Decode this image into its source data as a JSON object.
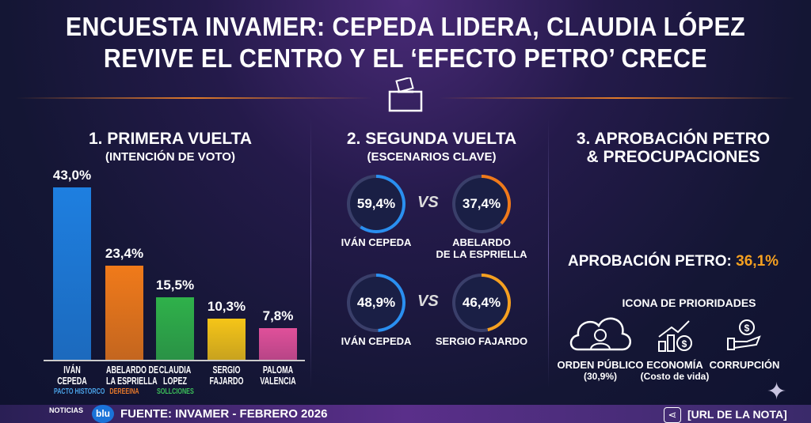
{
  "title": {
    "line1": "ENCUESTA INVAMER: CEPEDA LIDERA, CLAUDIA LÓPEZ",
    "line2": "REVIVE EL CENTRO Y EL ‘EFECTO PETRO’ CRECE"
  },
  "section1": {
    "title": "1. PRIMERA VUELTA",
    "subtitle": "(INTENCIÓN DE VOTO)"
  },
  "chart_data": {
    "type": "bar",
    "title": "1. PRIMERA VUELTA (INTENCIÓN DE VOTO)",
    "categories": [
      "IVÁN CEPEDA",
      "ABELARDO DE LA ESPRIELLA",
      "CLAUDIA LOPEZ",
      "SERGIO FAJARDO",
      "PALOMA VALENCIA"
    ],
    "values": [
      43.0,
      23.4,
      15.5,
      10.3,
      7.8
    ],
    "labels": [
      "43,0%",
      "23,4%",
      "15,5%",
      "10,3%",
      "7,8%"
    ],
    "name_lines": [
      [
        "IVÁN",
        "CEPEDA"
      ],
      [
        "ABELARDO DE",
        "LA ESPRIELLA"
      ],
      [
        "CLAUDIA",
        "LOPEZ"
      ],
      [
        "SERGIO",
        "FAJARDO"
      ],
      [
        "PALOMA",
        "VALENCIA"
      ]
    ],
    "parties": [
      "PACTO HISTORCO",
      "DEREEINA",
      "SOLLCIONES",
      "",
      ""
    ],
    "colors": [
      "#1e7fe0",
      "#f07a1a",
      "#2fb14a",
      "#f5c518",
      "#e0509a"
    ],
    "party_colors": [
      "#4aa3e8",
      "#e8782a",
      "#3cc05a",
      "",
      ""
    ],
    "ylim": [
      0,
      45
    ]
  },
  "section2": {
    "title": "2. SEGUNDA VUELTA",
    "subtitle": "(ESCENARIOS CLAVE)",
    "vs": "VS",
    "scenarios": [
      {
        "a": {
          "value": "59,4%",
          "pct": 59.4,
          "name": [
            "IVÁN CEPEDA",
            ""
          ],
          "color": "#2a8ff0"
        },
        "b": {
          "value": "37,4%",
          "pct": 37.4,
          "name": [
            "ABELARDO",
            "DE LA ESPRIELLA"
          ],
          "color": "#f07a1a"
        }
      },
      {
        "a": {
          "value": "48,9%",
          "pct": 48.9,
          "name": [
            "IVÁN CEPEDA",
            ""
          ],
          "color": "#2a8ff0"
        },
        "b": {
          "value": "46,4%",
          "pct": 46.4,
          "name": [
            "SERGIO FAJARDO",
            ""
          ],
          "color": "#f5a020"
        }
      }
    ]
  },
  "section3": {
    "title1": "3. APROBACIÓN PETRO",
    "title2": "& PREOCUPACIONES",
    "approval_label": "APROBACIÓN PETRO:",
    "approval_value": "36,1%",
    "priorities_title": "ICONA DE PRIORIDADES",
    "priorities": [
      {
        "l1": "ORDEN PÚBLICO",
        "l2": "(30,9%)"
      },
      {
        "l1": "ECONOMÍA",
        "l2": "(Costo de vida)"
      },
      {
        "l1": "CORRUPCIÓN",
        "l2": ""
      }
    ]
  },
  "footer": {
    "source": "FUENTE: INVAMER - FEBRERO 2026",
    "url": "[URL DE LA NOTA]",
    "logo1": "NOTICIAS",
    "logo2": "blu"
  }
}
